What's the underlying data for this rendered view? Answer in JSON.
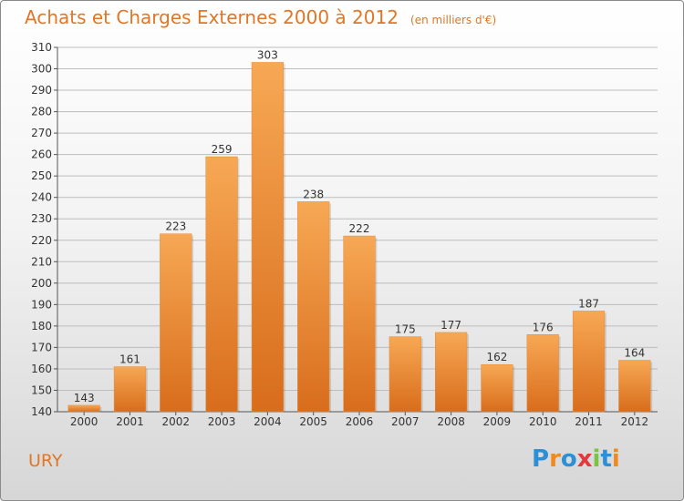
{
  "header": {
    "title": "Achats et Charges Externes 2000 à 2012",
    "unit": "(en milliers d'€)"
  },
  "footer": {
    "location": "URY",
    "logo_text": "Proxiti"
  },
  "colors": {
    "accent": "#e07626",
    "bar_light": "#f7a854",
    "bar_dark": "#d86d1c",
    "grid": "#bdbdbd"
  },
  "logo_letters": [
    {
      "ch": "P",
      "color": "#2e8fd6"
    },
    {
      "ch": "r",
      "color": "#f08a1c"
    },
    {
      "ch": "o",
      "color": "#2e8fd6"
    },
    {
      "ch": "x",
      "color": "#e23a3a"
    },
    {
      "ch": "i",
      "color": "#7cc243"
    },
    {
      "ch": "t",
      "color": "#2e8fd6"
    },
    {
      "ch": "i",
      "color": "#f08a1c"
    }
  ],
  "chart_data": {
    "type": "bar",
    "title": "Achats et Charges Externes 2000 à 2012",
    "subtitle": "(en milliers d'€)",
    "xlabel": "",
    "ylabel": "",
    "categories": [
      "2000",
      "2001",
      "2002",
      "2003",
      "2004",
      "2005",
      "2006",
      "2007",
      "2008",
      "2009",
      "2010",
      "2011",
      "2012"
    ],
    "values": [
      143,
      161,
      223,
      259,
      303,
      238,
      222,
      175,
      177,
      162,
      176,
      187,
      164
    ],
    "ylim": [
      140,
      310
    ],
    "yticks": [
      140,
      150,
      160,
      170,
      180,
      190,
      200,
      210,
      220,
      230,
      240,
      250,
      260,
      270,
      280,
      290,
      300,
      310
    ],
    "grid": true,
    "legend": "none"
  }
}
